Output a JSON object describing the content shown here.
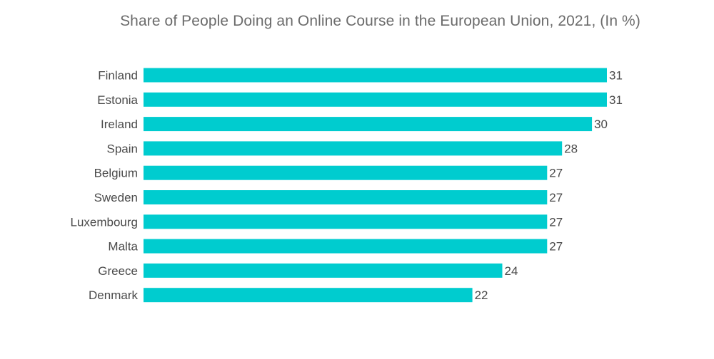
{
  "chart_data": {
    "type": "bar",
    "orientation": "horizontal",
    "title": "Share of People Doing an Online Course in the European Union, 2021, (In %)",
    "xlabel": "",
    "ylabel": "",
    "categories": [
      "Finland",
      "Estonia",
      "Ireland",
      "Spain",
      "Belgium",
      "Sweden",
      "Luxembourg",
      "Malta",
      "Greece",
      "Denmark"
    ],
    "values": [
      31,
      31,
      30,
      28,
      27,
      27,
      27,
      27,
      24,
      22
    ],
    "xlim": [
      0,
      31
    ],
    "grid": false,
    "legend": "none",
    "data_labels": true,
    "bar_color": "#00cccf"
  }
}
